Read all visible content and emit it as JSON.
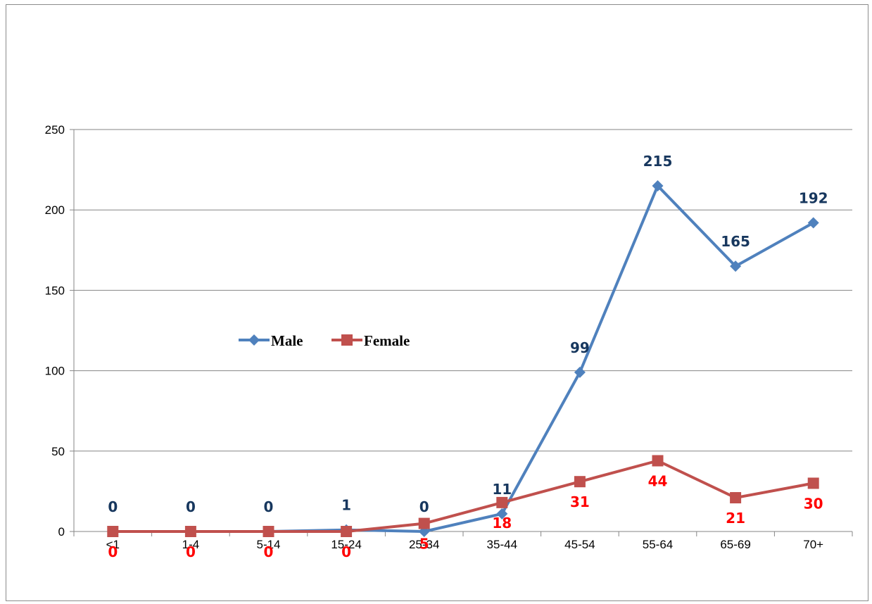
{
  "chart_data": {
    "type": "line",
    "categories": [
      "<1",
      "1-4",
      "5-14",
      "15-24",
      "25-34",
      "35-44",
      "45-54",
      "55-64",
      "65-69",
      "70+"
    ],
    "series": [
      {
        "name": "Male",
        "values": [
          0,
          0,
          0,
          1,
          0,
          11,
          99,
          215,
          165,
          192
        ],
        "color": "#4f81bd",
        "label_color": "#17375e",
        "marker": "diamond"
      },
      {
        "name": "Female",
        "values": [
          0,
          0,
          0,
          0,
          5,
          18,
          31,
          44,
          21,
          30
        ],
        "color": "#c0504d",
        "label_color": "#ff0000",
        "marker": "square"
      }
    ],
    "ylim": [
      0,
      250
    ],
    "yticks": [
      0,
      50,
      100,
      150,
      200,
      250
    ],
    "grid": true,
    "legend": "center-left",
    "title": "",
    "xlabel": "",
    "ylabel": ""
  }
}
